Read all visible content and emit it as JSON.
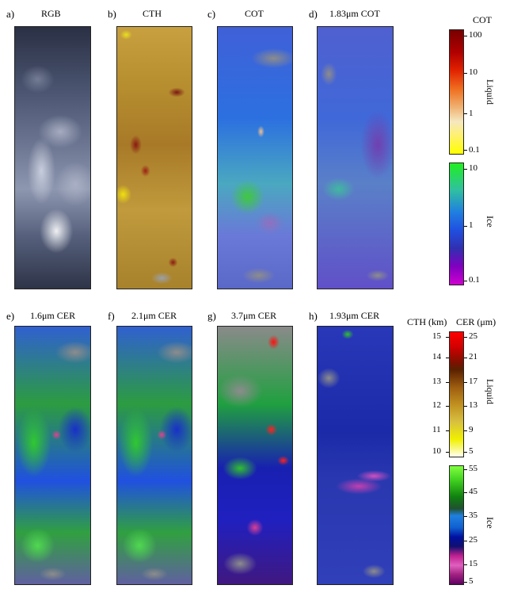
{
  "panels_top": [
    {
      "letter": "a)",
      "title": "RGB"
    },
    {
      "letter": "b)",
      "title": "CTH"
    },
    {
      "letter": "c)",
      "title": "COT"
    },
    {
      "letter": "d)",
      "title": "1.83μm COT"
    }
  ],
  "panels_bottom": [
    {
      "letter": "e)",
      "title": "1.6μm CER"
    },
    {
      "letter": "f)",
      "title": "2.1μm CER"
    },
    {
      "letter": "g)",
      "title": "3.7μm CER"
    },
    {
      "letter": "h)",
      "title": "1.93μm CER"
    }
  ],
  "cot_colorbar": {
    "header": "COT",
    "liquid_label": "Liquid",
    "ice_label": "Ice",
    "liquid_ticks": [
      "100",
      "10",
      "1",
      "0.1"
    ],
    "ice_ticks": [
      "10",
      "1",
      "0.1"
    ]
  },
  "cer_colorbar": {
    "header_cth": "CTH (km)",
    "header_cer": "CER (μm)",
    "liquid_label": "Liquid",
    "ice_label": "Ice",
    "cth_ticks": [
      "15",
      "14",
      "13",
      "12",
      "11",
      "10"
    ],
    "cer_liquid_ticks": [
      "25",
      "21",
      "17",
      "13",
      "9",
      "5"
    ],
    "cer_ice_ticks": [
      "55",
      "45",
      "35",
      "25",
      "15",
      "5"
    ]
  }
}
